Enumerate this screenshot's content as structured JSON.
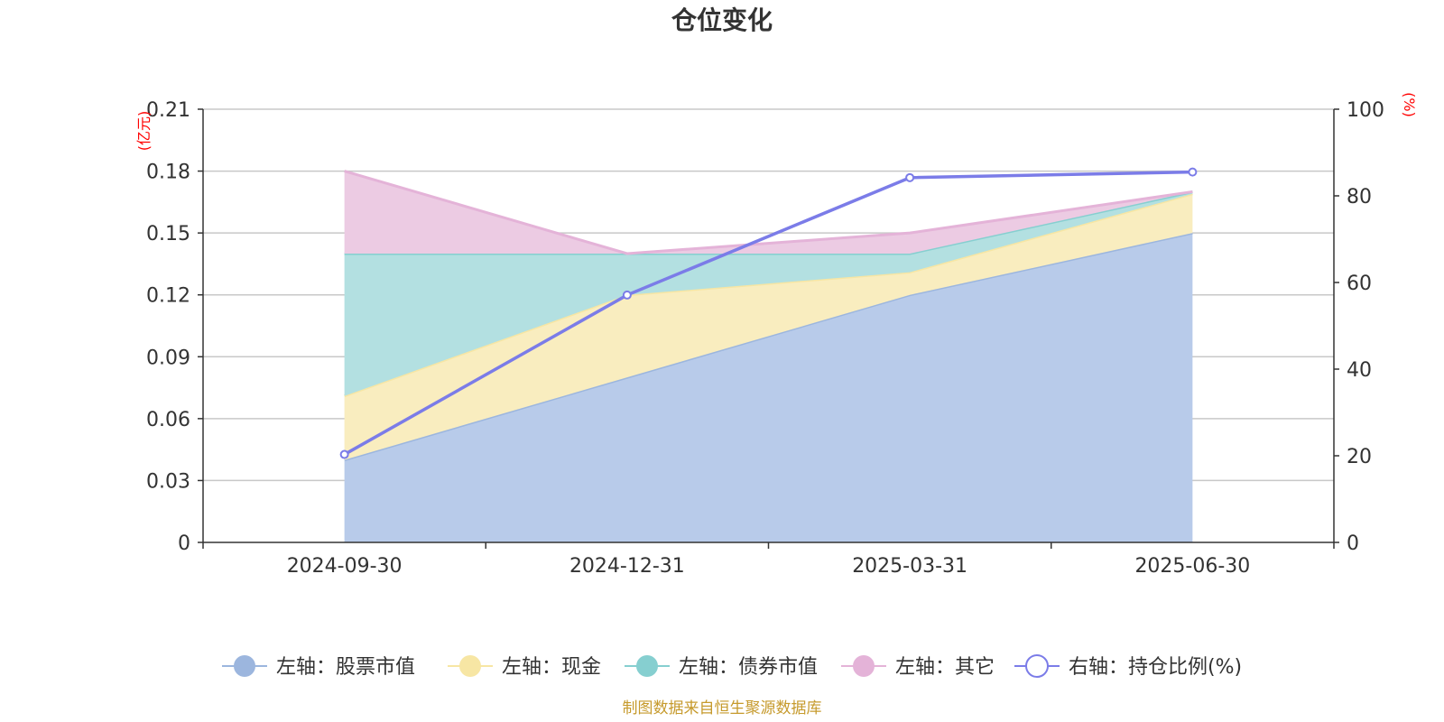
{
  "chart_data": {
    "type": "area",
    "title": "仓位变化",
    "categories": [
      "2024-09-30",
      "2024-12-31",
      "2025-03-31",
      "2025-06-30"
    ],
    "left_axis": {
      "unit": "(亿元)",
      "ylim": [
        0,
        0.21
      ],
      "ticks": [
        "0",
        "0.03",
        "0.06",
        "0.09",
        "0.12",
        "0.15",
        "0.18",
        "0.21"
      ]
    },
    "right_axis": {
      "unit": "(%)",
      "ylim": [
        0,
        100
      ],
      "ticks": [
        "0",
        "20",
        "40",
        "60",
        "80",
        "100"
      ]
    },
    "grid": true,
    "stacked": true,
    "series": [
      {
        "name": "左轴：股票市值",
        "axis": "left",
        "kind": "area",
        "color": "#9cb6de",
        "fill": "#b8cbea",
        "values": [
          0.04,
          0.08,
          0.12,
          0.15
        ]
      },
      {
        "name": "左轴：现金",
        "axis": "left",
        "kind": "area",
        "color": "#f7e6a4",
        "fill": "#f9edbf",
        "values": [
          0.031,
          0.04,
          0.011,
          0.019
        ]
      },
      {
        "name": "左轴：债券市值",
        "axis": "left",
        "kind": "area",
        "color": "#86cfd0",
        "fill": "#b3e0e1",
        "values": [
          0.069,
          0.02,
          0.009,
          0.001
        ]
      },
      {
        "name": "左轴：其它",
        "axis": "left",
        "kind": "area",
        "color": "#e4b3d8",
        "fill": "#eccbe3",
        "values": [
          0.04,
          0.0,
          0.01,
          0.0
        ]
      },
      {
        "name": "右轴：持仓比例(%)",
        "axis": "right",
        "kind": "line",
        "color": "#7b7ce8",
        "values": [
          20.3,
          57.1,
          84.2,
          85.5
        ]
      }
    ],
    "legend_position": "bottom-center"
  },
  "footer": "制图数据来自恒生聚源数据库"
}
